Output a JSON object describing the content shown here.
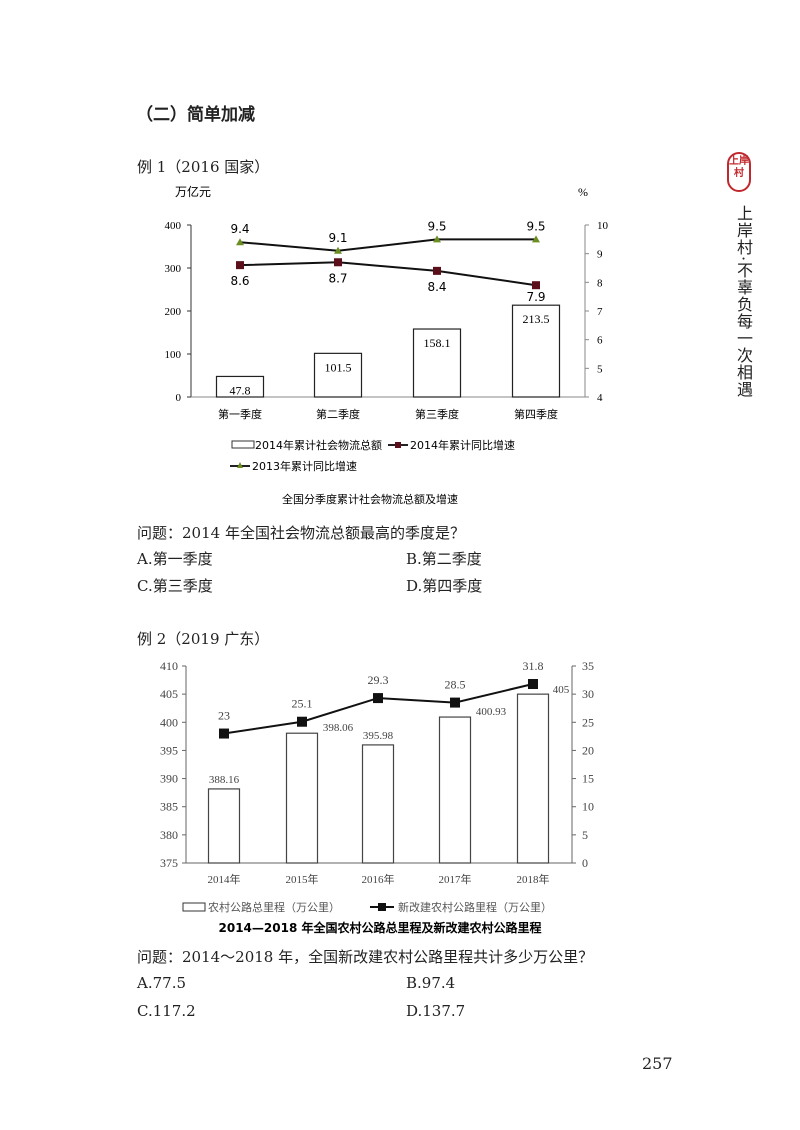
{
  "section_heading": "（二）简单加减",
  "side_brand": {
    "seal": "上岸村",
    "slogan": "上岸村·不辜负每一次相遇",
    "seal_color": "#c0282d"
  },
  "example1": {
    "label": "例 1（2016 国家）",
    "question": "问题：2014 年全国社会物流总额最高的季度是？",
    "options": [
      {
        "key": "A.",
        "text": "第一季度"
      },
      {
        "key": "B.",
        "text": "第二季度"
      },
      {
        "key": "C.",
        "text": "第三季度"
      },
      {
        "key": "D.",
        "text": "第四季度"
      }
    ]
  },
  "example2": {
    "label": "例 2（2019 广东）",
    "question": "问题：2014～2018 年，全国新改建农村公路里程共计多少万公里？",
    "options": [
      {
        "key": "A.",
        "text": "77.5"
      },
      {
        "key": "B.",
        "text": "97.4"
      },
      {
        "key": "C.",
        "text": "117.2"
      },
      {
        "key": "D.",
        "text": "137.7"
      }
    ]
  },
  "page_number": "257",
  "chart_data": [
    {
      "type": "bar+line",
      "title": "全国分季度累计社会物流总额及增速",
      "ylabel": "万亿元",
      "ylabel_right": "%",
      "categories": [
        "第一季度",
        "第二季度",
        "第三季度",
        "第四季度"
      ],
      "ylim": [
        0,
        400
      ],
      "yticks": [
        0,
        100,
        200,
        300,
        400
      ],
      "ylim_right": [
        4,
        10
      ],
      "yticks_right": [
        4,
        5,
        6,
        7,
        8,
        9,
        10
      ],
      "series": [
        {
          "name": "2014年累计社会物流总额",
          "type": "bar",
          "axis": "left",
          "values": [
            47.8,
            101.5,
            158.1,
            213.5
          ],
          "labels": [
            "47.8",
            "101.5",
            "158.1",
            "213.5"
          ]
        },
        {
          "name": "2014年累计同比增速",
          "type": "line",
          "axis": "right",
          "marker": "square",
          "marker_color": "#5a0f1a",
          "values": [
            8.6,
            8.7,
            8.4,
            7.9
          ],
          "labels": [
            "8.6",
            "8.7",
            "8.4",
            "7.9"
          ]
        },
        {
          "name": "2013年累计同比增速",
          "type": "line",
          "axis": "right",
          "marker": "triangle",
          "marker_color": "#6b8e23",
          "values": [
            9.4,
            9.1,
            9.5,
            9.5
          ],
          "labels": [
            "9.4",
            "9.1",
            "9.5",
            "9.5"
          ]
        }
      ],
      "legend": [
        "2014年累计社会物流总额",
        "2014年累计同比增速",
        "2013年累计同比增速"
      ],
      "legend_position": "bottom",
      "grid": false
    },
    {
      "type": "bar+line",
      "title": "2014—2018 年全国农村公路总里程及新改建农村公路里程",
      "categories": [
        "2014年",
        "2015年",
        "2016年",
        "2017年",
        "2018年"
      ],
      "ylim": [
        375,
        410
      ],
      "yticks": [
        375,
        380,
        385,
        390,
        395,
        400,
        405,
        410
      ],
      "ylim_right": [
        0,
        35
      ],
      "yticks_right": [
        0,
        5,
        10,
        15,
        20,
        25,
        30,
        35
      ],
      "series": [
        {
          "name": "农村公路总里程（万公里）",
          "type": "bar",
          "axis": "left",
          "values": [
            388.16,
            398.06,
            395.98,
            400.93,
            405
          ],
          "labels": [
            "388.16",
            "398.06",
            "395.98",
            "400.93",
            "405"
          ]
        },
        {
          "name": "新改建农村公路里程（万公里）",
          "type": "line",
          "axis": "right",
          "marker": "square",
          "values": [
            23,
            25.1,
            29.3,
            28.5,
            31.8
          ],
          "labels": [
            "23",
            "25.1",
            "29.3",
            "28.5",
            "31.8"
          ]
        }
      ],
      "legend": [
        "农村公路总里程（万公里）",
        "新改建农村公路里程（万公里）"
      ],
      "legend_position": "bottom",
      "grid": false
    }
  ]
}
